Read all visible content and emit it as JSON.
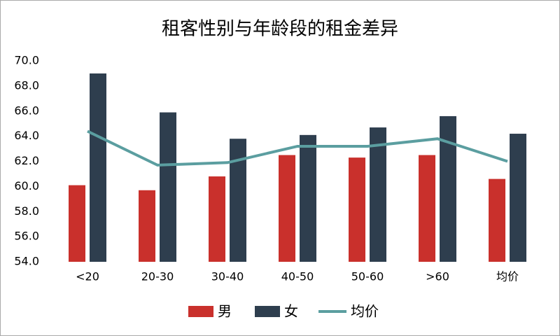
{
  "chart_data": {
    "type": "bar",
    "title": "租客性别与年龄段的租金差异",
    "categories": [
      "<20",
      "20-30",
      "30-40",
      "40-50",
      "50-60",
      ">60",
      "均价"
    ],
    "series": [
      {
        "name": "男",
        "type": "bar",
        "color": "#c9302c",
        "values": [
          60.1,
          59.7,
          60.8,
          62.5,
          62.3,
          62.5,
          60.6
        ]
      },
      {
        "name": "女",
        "type": "bar",
        "color": "#2e3e4e",
        "values": [
          69.0,
          65.9,
          63.8,
          64.1,
          64.7,
          65.6,
          64.2
        ]
      },
      {
        "name": "均价",
        "type": "line",
        "color": "#5b9ea0",
        "values": [
          64.4,
          61.7,
          61.9,
          63.2,
          63.2,
          63.8,
          62.0
        ]
      }
    ],
    "ylim": [
      54,
      70
    ],
    "yticks": [
      {
        "value": 54,
        "label": "54.0"
      },
      {
        "value": 56,
        "label": "56.0"
      },
      {
        "value": 58,
        "label": "58.0"
      },
      {
        "value": 60,
        "label": "60.0"
      },
      {
        "value": 62,
        "label": "62.0"
      },
      {
        "value": 64,
        "label": "64.0"
      },
      {
        "value": 66,
        "label": "66.0"
      },
      {
        "value": 68,
        "label": "68.0"
      },
      {
        "value": 70,
        "label": "70.0"
      }
    ],
    "legend": "bottom"
  }
}
